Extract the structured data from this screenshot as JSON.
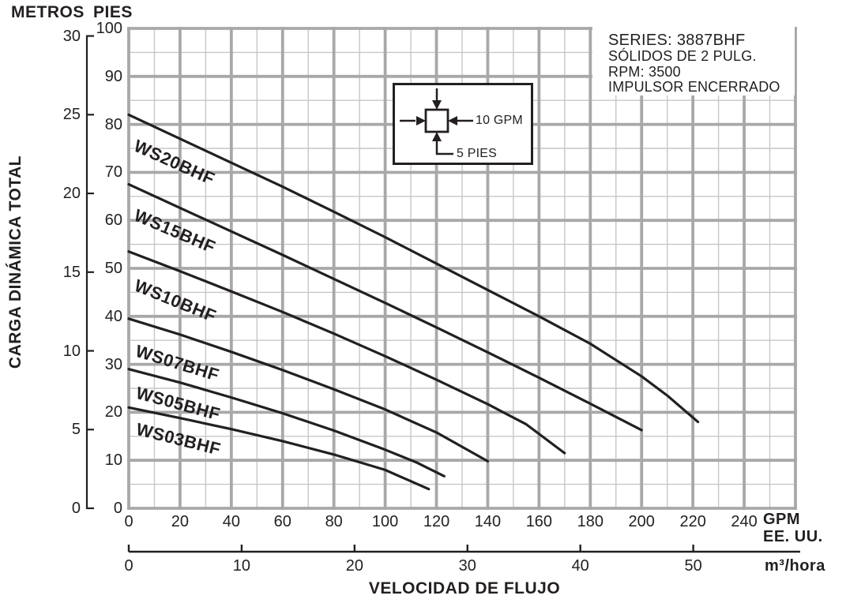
{
  "header": {
    "metros": "METROS",
    "pies": "PIES"
  },
  "info_box": {
    "series": "SERIES: 3887BHF",
    "solids": "SÓLIDOS DE 2 PULG.",
    "rpm": "RPM: 3500",
    "impeller": "IMPULSOR ENCERRADO"
  },
  "legend": {
    "gpm_label": "10 GPM",
    "pies_label": "5 PIES"
  },
  "axes": {
    "y_title": "CARGA DINÁMICA TOTAL",
    "x_title": "VELOCIDAD DE FLUJO",
    "gpm_unit_line1": "GPM",
    "gpm_unit_line2": "EE. UU.",
    "m3_unit": "m³/hora"
  },
  "colors": {
    "curve": "#231f20",
    "text": "#231f20",
    "grid_major": "#a8a8a8",
    "grid_minor": "#c7c7c7",
    "background": "#ffffff"
  },
  "chart_data": {
    "type": "line",
    "title": "SERIES: 3887BHF",
    "subtitle": "SÓLIDOS DE 2 PULG. / RPM: 3500 / IMPULSOR ENCERRADO",
    "x_label": "VELOCIDAD DE FLUJO",
    "y_label": "CARGA DINÁMICA TOTAL",
    "x_units": [
      "GPM EE. UU.",
      "m³/hora"
    ],
    "y_units": [
      "PIES",
      "METROS"
    ],
    "gpm_range": [
      0,
      260
    ],
    "pies_range": [
      0,
      100
    ],
    "gpm_ticks": [
      0,
      20,
      40,
      60,
      80,
      100,
      120,
      140,
      160,
      180,
      200,
      220,
      240
    ],
    "pies_ticks": [
      0,
      10,
      20,
      30,
      40,
      50,
      60,
      70,
      80,
      90,
      100
    ],
    "metros_ticks": [
      0,
      5,
      10,
      15,
      20,
      25,
      30
    ],
    "m3_ticks": [
      0,
      10,
      20,
      30,
      40,
      50
    ],
    "gpm_per_m3h": 4.4029,
    "pies_per_metro": 3.2808,
    "grid": {
      "minor_gpm": 10,
      "minor_pies": 5,
      "major_gpm": 20,
      "major_pies": 10,
      "grid_on": true
    },
    "legend_cell": {
      "width_gpm": 10,
      "height_pies": 5
    },
    "series": [
      {
        "name": "WS20BHF",
        "points": [
          [
            0,
            82
          ],
          [
            20,
            77
          ],
          [
            40,
            72
          ],
          [
            60,
            67
          ],
          [
            80,
            61.8
          ],
          [
            100,
            56.5
          ],
          [
            120,
            51
          ],
          [
            140,
            45.5
          ],
          [
            160,
            40
          ],
          [
            180,
            34.3
          ],
          [
            200,
            27.5
          ],
          [
            210,
            23.5
          ],
          [
            222,
            18
          ]
        ]
      },
      {
        "name": "WS15BHF",
        "points": [
          [
            0,
            67.5
          ],
          [
            20,
            62.6
          ],
          [
            40,
            57.7
          ],
          [
            60,
            52.8
          ],
          [
            80,
            47.8
          ],
          [
            100,
            42.8
          ],
          [
            120,
            37.7
          ],
          [
            140,
            32.5
          ],
          [
            160,
            27.2
          ],
          [
            180,
            21.8
          ],
          [
            200,
            16.3
          ]
        ]
      },
      {
        "name": "WS10BHF",
        "points": [
          [
            0,
            53.5
          ],
          [
            20,
            49.4
          ],
          [
            40,
            45.2
          ],
          [
            60,
            40.9
          ],
          [
            80,
            36.4
          ],
          [
            100,
            31.7
          ],
          [
            120,
            26.8
          ],
          [
            140,
            21.7
          ],
          [
            155,
            17.5
          ],
          [
            170,
            11.5
          ]
        ]
      },
      {
        "name": "WS07BHF",
        "points": [
          [
            0,
            39.5
          ],
          [
            20,
            36.2
          ],
          [
            40,
            32.6
          ],
          [
            60,
            28.8
          ],
          [
            80,
            24.8
          ],
          [
            100,
            20.6
          ],
          [
            120,
            15.8
          ],
          [
            140,
            9.8
          ]
        ]
      },
      {
        "name": "WS05BHF",
        "points": [
          [
            0,
            29
          ],
          [
            20,
            26.2
          ],
          [
            40,
            23.1
          ],
          [
            60,
            19.8
          ],
          [
            80,
            16.2
          ],
          [
            100,
            12.2
          ],
          [
            112,
            9.6
          ],
          [
            123,
            6.7
          ]
        ]
      },
      {
        "name": "WS03BHF",
        "points": [
          [
            0,
            21
          ],
          [
            20,
            18.8
          ],
          [
            40,
            16.5
          ],
          [
            60,
            14
          ],
          [
            80,
            11.2
          ],
          [
            100,
            8
          ],
          [
            117,
            4
          ]
        ]
      }
    ]
  }
}
